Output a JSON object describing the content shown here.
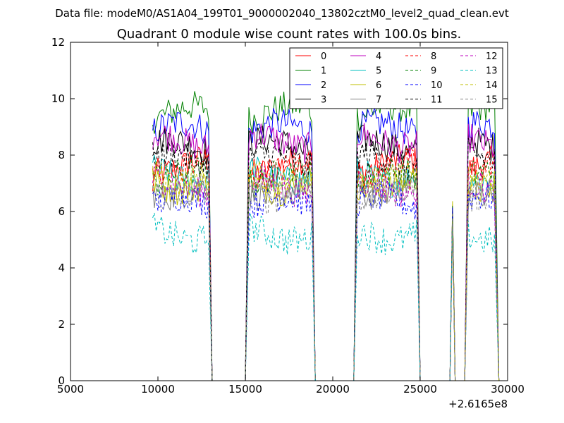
{
  "figure": {
    "suptitle": "Data file: modeM0/AS1A04_199T01_9000002040_13802cztM0_level2_quad_clean.evt"
  },
  "chart_data": {
    "type": "line",
    "title": "Quadrant 0 module wise count rates with 100.0s bins.",
    "xlabel": "",
    "ylabel": "",
    "x_offset_label": "+2.6165e8",
    "xlim": [
      5000,
      30000
    ],
    "ylim": [
      0,
      12
    ],
    "xticks": [
      5000,
      10000,
      15000,
      20000,
      25000,
      30000
    ],
    "xtick_labels": [
      "5000",
      "10000",
      "15000",
      "20000",
      "25000",
      "30000"
    ],
    "yticks": [
      0,
      2,
      4,
      6,
      8,
      10,
      12
    ],
    "ytick_labels": [
      "0",
      "2",
      "4",
      "6",
      "8",
      "10",
      "12"
    ],
    "grid": false,
    "legend_location": "top-right",
    "legend_columns": 4,
    "bin_seconds": 100,
    "active_intervals": [
      {
        "start": 9700,
        "end": 12900
      },
      {
        "start": 15200,
        "end": 18800
      },
      {
        "start": 21400,
        "end": 24800
      },
      {
        "start": 26850,
        "end": 26850,
        "spike": true
      },
      {
        "start": 27750,
        "end": 29300
      }
    ],
    "gap_value": 0,
    "spike_level": 6.4,
    "series": [
      {
        "name": "0",
        "color": "#ff0000",
        "dash": "solid",
        "mean": 7.6
      },
      {
        "name": "1",
        "color": "#008000",
        "dash": "solid",
        "mean": 9.5
      },
      {
        "name": "2",
        "color": "#0000ff",
        "dash": "solid",
        "mean": 8.9
      },
      {
        "name": "3",
        "color": "#000000",
        "dash": "solid",
        "mean": 8.3
      },
      {
        "name": "4",
        "color": "#bf00bf",
        "dash": "solid",
        "mean": 8.5
      },
      {
        "name": "5",
        "color": "#00bfbf",
        "dash": "solid",
        "mean": 7.3
      },
      {
        "name": "6",
        "color": "#bfbf00",
        "dash": "solid",
        "mean": 7.0
      },
      {
        "name": "7",
        "color": "#808080",
        "dash": "solid",
        "mean": 6.8
      },
      {
        "name": "8",
        "color": "#ff0000",
        "dash": "dashed",
        "mean": 7.5
      },
      {
        "name": "9",
        "color": "#008000",
        "dash": "dashed",
        "mean": 7.2
      },
      {
        "name": "10",
        "color": "#0000ff",
        "dash": "dashed",
        "mean": 6.3
      },
      {
        "name": "11",
        "color": "#000000",
        "dash": "dashed",
        "mean": 7.8
      },
      {
        "name": "12",
        "color": "#bf00bf",
        "dash": "dashed",
        "mean": 6.9
      },
      {
        "name": "13",
        "color": "#00bfbf",
        "dash": "dashed",
        "mean": 5.2
      },
      {
        "name": "14",
        "color": "#bfbf00",
        "dash": "dashed",
        "mean": 7.3
      },
      {
        "name": "15",
        "color": "#808080",
        "dash": "dashed",
        "mean": 6.7
      }
    ]
  }
}
